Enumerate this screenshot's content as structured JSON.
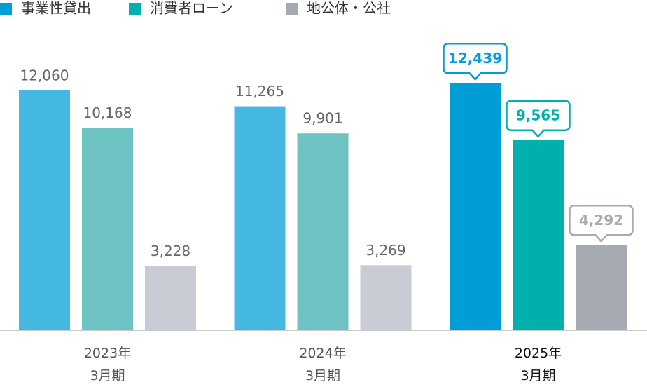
{
  "chart_data": {
    "type": "bar",
    "categories": [
      "2023年\n3月期",
      "2024年\n3月期",
      "2025年\n3月期"
    ],
    "highlight_index": 2,
    "ylim": [
      0,
      14000
    ],
    "series": [
      {
        "name": "事業性貸出",
        "color": "#009dd7",
        "faded_color": "#44b8e1",
        "values": [
          12060,
          11265,
          12439
        ],
        "value_labels": [
          "12,060",
          "11,265",
          "12,439"
        ]
      },
      {
        "name": "消費者ローン",
        "color": "#00b0ab",
        "faded_color": "#6cc3c1",
        "values": [
          10168,
          9901,
          9565
        ],
        "value_labels": [
          "10,168",
          "9,901",
          "9,565"
        ]
      },
      {
        "name": "地公体・公社",
        "color": "#a6aab3",
        "faded_color": "#c9ccd4",
        "values": [
          3228,
          3269,
          4292
        ],
        "value_labels": [
          "3,228",
          "3,269",
          "4,292"
        ]
      }
    ]
  }
}
